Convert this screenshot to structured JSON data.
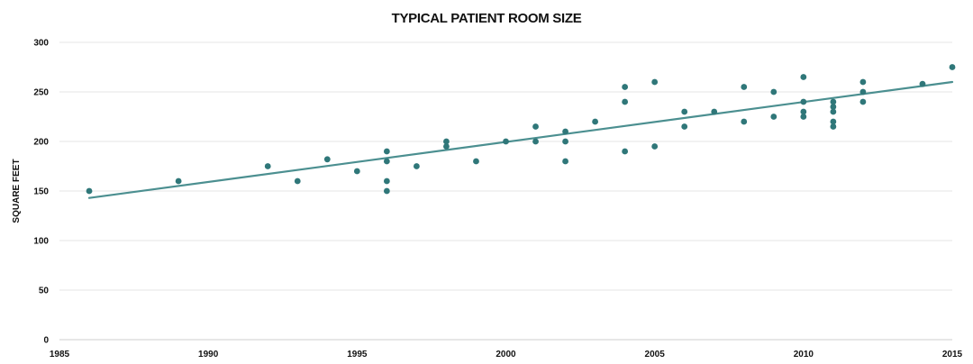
{
  "chart_data": {
    "type": "scatter",
    "title": "TYPICAL PATIENT ROOM SIZE",
    "xlabel": "",
    "ylabel": "SQUARE FEET",
    "xlim": [
      1985,
      2015
    ],
    "ylim": [
      0,
      300
    ],
    "x_ticks": [
      1985,
      1990,
      1995,
      2000,
      2005,
      2010,
      2015
    ],
    "y_ticks": [
      0,
      50,
      100,
      150,
      200,
      250,
      300
    ],
    "grid": true,
    "legend": "none",
    "colors": {
      "points": "#2f7779",
      "trendline": "#4b8f90",
      "grid": "#e6e6e6"
    },
    "series": [
      {
        "values": [
          [
            1986,
            150
          ],
          [
            1989,
            160
          ],
          [
            1992,
            175
          ],
          [
            1993,
            160
          ],
          [
            1994,
            182
          ],
          [
            1995,
            170
          ],
          [
            1996,
            190
          ],
          [
            1996,
            180
          ],
          [
            1996,
            160
          ],
          [
            1996,
            150
          ],
          [
            1997,
            175
          ],
          [
            1998,
            200
          ],
          [
            1998,
            195
          ],
          [
            1999,
            180
          ],
          [
            2000,
            200
          ],
          [
            2001,
            215
          ],
          [
            2001,
            200
          ],
          [
            2002,
            210
          ],
          [
            2002,
            200
          ],
          [
            2002,
            180
          ],
          [
            2003,
            220
          ],
          [
            2004,
            255
          ],
          [
            2004,
            240
          ],
          [
            2004,
            190
          ],
          [
            2005,
            260
          ],
          [
            2005,
            195
          ],
          [
            2006,
            230
          ],
          [
            2006,
            215
          ],
          [
            2007,
            230
          ],
          [
            2008,
            255
          ],
          [
            2008,
            220
          ],
          [
            2009,
            250
          ],
          [
            2009,
            225
          ],
          [
            2010,
            265
          ],
          [
            2010,
            240
          ],
          [
            2010,
            230
          ],
          [
            2010,
            225
          ],
          [
            2011,
            240
          ],
          [
            2011,
            235
          ],
          [
            2011,
            230
          ],
          [
            2011,
            220
          ],
          [
            2011,
            215
          ],
          [
            2012,
            260
          ],
          [
            2012,
            250
          ],
          [
            2012,
            240
          ],
          [
            2014,
            258
          ],
          [
            2015,
            275
          ]
        ]
      }
    ],
    "trendline": {
      "x": [
        1986,
        2015
      ],
      "y": [
        143,
        260
      ]
    }
  }
}
